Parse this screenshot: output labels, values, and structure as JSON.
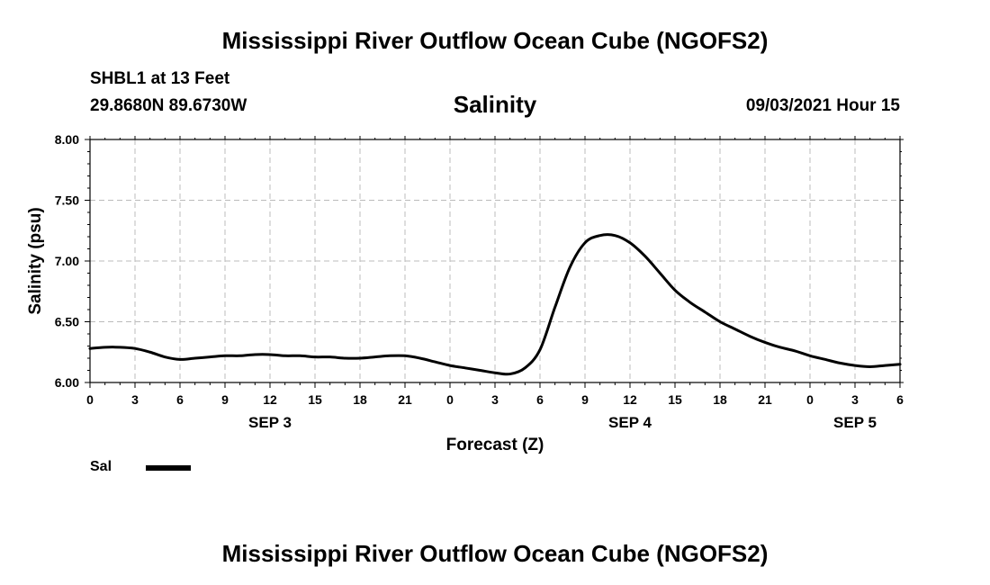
{
  "header": {
    "title": "Mississippi River Outflow Ocean Cube (NGOFS2)",
    "station": "SHBL1 at 13 Feet",
    "coords": "29.8680N  89.6730W",
    "variable": "Salinity",
    "timestamp": "09/03/2021 Hour 15"
  },
  "footer": {
    "title": "Mississippi River Outflow Ocean Cube (NGOFS2)"
  },
  "legend": {
    "label": "Sal",
    "color": "#000000"
  },
  "chart_data": {
    "type": "line",
    "title": "Salinity",
    "xlabel": "Forecast (Z)",
    "ylabel": "Salinity (psu)",
    "grid": true,
    "xlim": [
      0,
      54
    ],
    "ylim": [
      6.0,
      8.0
    ],
    "y_ticks": [
      "6.00",
      "6.50",
      "7.00",
      "7.50",
      "8.00"
    ],
    "x_ticks": [
      {
        "hour": 0,
        "label": "0"
      },
      {
        "hour": 3,
        "label": "3"
      },
      {
        "hour": 6,
        "label": "6"
      },
      {
        "hour": 9,
        "label": "9"
      },
      {
        "hour": 12,
        "label": "12"
      },
      {
        "hour": 15,
        "label": "15"
      },
      {
        "hour": 18,
        "label": "18"
      },
      {
        "hour": 21,
        "label": "21"
      },
      {
        "hour": 24,
        "label": "0"
      },
      {
        "hour": 27,
        "label": "3"
      },
      {
        "hour": 30,
        "label": "6"
      },
      {
        "hour": 33,
        "label": "9"
      },
      {
        "hour": 36,
        "label": "12"
      },
      {
        "hour": 39,
        "label": "15"
      },
      {
        "hour": 42,
        "label": "18"
      },
      {
        "hour": 45,
        "label": "21"
      },
      {
        "hour": 48,
        "label": "0"
      },
      {
        "hour": 51,
        "label": "3"
      },
      {
        "hour": 54,
        "label": "6"
      }
    ],
    "date_labels": [
      {
        "hour": 12,
        "label": "SEP 3"
      },
      {
        "hour": 36,
        "label": "SEP 4"
      },
      {
        "hour": 51,
        "label": "SEP 5"
      }
    ],
    "series": [
      {
        "name": "Sal",
        "color": "#000000",
        "x": [
          0,
          1,
          2,
          3,
          4,
          5,
          6,
          7,
          8,
          9,
          10,
          11,
          12,
          13,
          14,
          15,
          16,
          17,
          18,
          19,
          20,
          21,
          22,
          23,
          24,
          25,
          26,
          27,
          28,
          29,
          30,
          31,
          32,
          33,
          34,
          35,
          36,
          37,
          38,
          39,
          40,
          41,
          42,
          43,
          44,
          45,
          46,
          47,
          48,
          49,
          50,
          51,
          52,
          53,
          54
        ],
        "y": [
          6.28,
          6.29,
          6.29,
          6.28,
          6.25,
          6.21,
          6.19,
          6.2,
          6.21,
          6.22,
          6.22,
          6.23,
          6.23,
          6.22,
          6.22,
          6.21,
          6.21,
          6.2,
          6.2,
          6.21,
          6.22,
          6.22,
          6.2,
          6.17,
          6.14,
          6.12,
          6.1,
          6.08,
          6.07,
          6.12,
          6.27,
          6.62,
          6.95,
          7.15,
          7.21,
          7.21,
          7.15,
          7.04,
          6.9,
          6.76,
          6.66,
          6.58,
          6.5,
          6.44,
          6.38,
          6.33,
          6.29,
          6.26,
          6.22,
          6.19,
          6.16,
          6.14,
          6.13,
          6.14,
          6.15
        ]
      }
    ]
  }
}
